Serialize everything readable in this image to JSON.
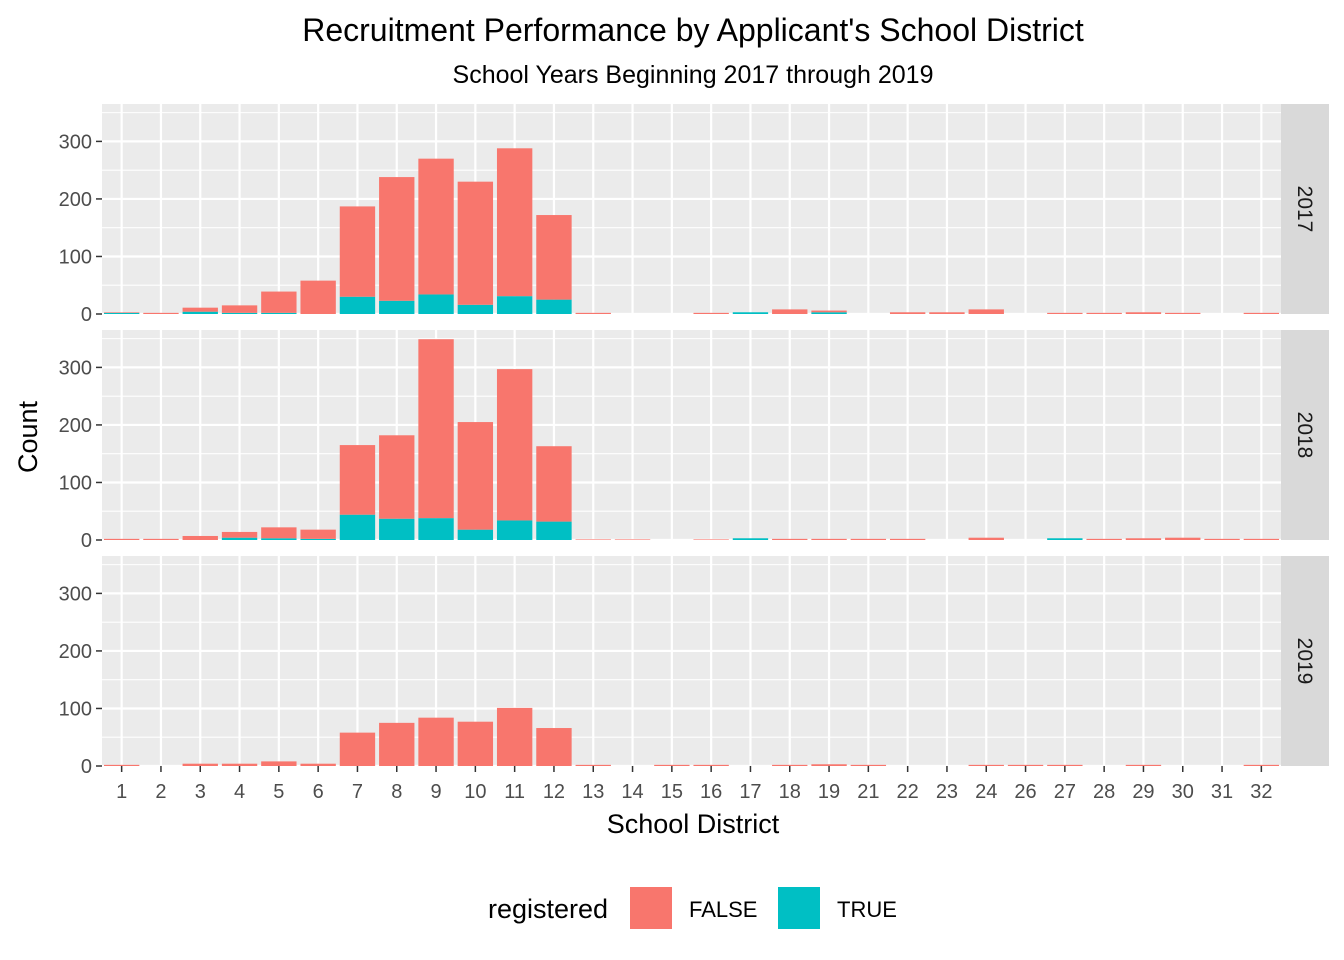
{
  "chart_data": {
    "type": "bar",
    "stacked": true,
    "faceted": true,
    "title": "Recruitment Performance by Applicant's School District",
    "subtitle": "School Years Beginning 2017 through 2019",
    "xlabel": "School District",
    "ylabel": "Count",
    "ylim": [
      0,
      365
    ],
    "yticks": [
      0,
      100,
      200,
      300
    ],
    "grid": true,
    "legend_position": "bottom",
    "legend": {
      "title": "registered",
      "items": [
        {
          "label": "FALSE",
          "color": "#F8766D"
        },
        {
          "label": "TRUE",
          "color": "#00BFC4"
        }
      ]
    },
    "categories": [
      "1",
      "2",
      "3",
      "4",
      "5",
      "6",
      "7",
      "8",
      "9",
      "10",
      "11",
      "12",
      "13",
      "14",
      "15",
      "16",
      "17",
      "18",
      "19",
      "21",
      "22",
      "23",
      "24",
      "26",
      "27",
      "28",
      "29",
      "30",
      "31",
      "32"
    ],
    "panels": [
      {
        "label": "2017",
        "series": [
          {
            "name": "FALSE",
            "values": [
              1,
              2,
              7,
              13,
              37,
              58,
              157,
              215,
              236,
              214,
              257,
              147,
              2,
              0,
              0,
              2,
              0,
              8,
              3,
              0,
              3,
              3,
              8,
              0,
              2,
              2,
              3,
              2,
              0,
              2
            ]
          },
          {
            "name": "TRUE",
            "values": [
              2,
              0,
              4,
              2,
              2,
              0,
              30,
              23,
              34,
              16,
              31,
              25,
              0,
              0,
              0,
              0,
              3,
              0,
              3,
              0,
              0,
              0,
              0,
              0,
              0,
              0,
              0,
              0,
              0,
              0
            ]
          }
        ]
      },
      {
        "label": "2018",
        "series": [
          {
            "name": "FALSE",
            "values": [
              2,
              2,
              7,
              10,
              19,
              16,
              121,
              145,
              311,
              187,
              263,
              131,
              1,
              1,
              0,
              1,
              0,
              2,
              2,
              2,
              2,
              0,
              4,
              0,
              0,
              2,
              3,
              4,
              2,
              2
            ]
          },
          {
            "name": "TRUE",
            "values": [
              0,
              0,
              0,
              4,
              3,
              2,
              44,
              37,
              38,
              18,
              34,
              32,
              0,
              0,
              0,
              0,
              3,
              0,
              0,
              0,
              0,
              0,
              0,
              0,
              3,
              0,
              0,
              0,
              0,
              0
            ]
          }
        ]
      },
      {
        "label": "2019",
        "series": [
          {
            "name": "FALSE",
            "values": [
              2,
              0,
              4,
              4,
              8,
              4,
              58,
              75,
              84,
              77,
              101,
              66,
              2,
              0,
              2,
              2,
              0,
              2,
              3,
              2,
              0,
              0,
              2,
              2,
              2,
              0,
              2,
              0,
              0,
              2
            ]
          },
          {
            "name": "TRUE",
            "values": [
              0,
              0,
              0,
              0,
              0,
              0,
              0,
              0,
              0,
              0,
              0,
              0,
              0,
              0,
              0,
              0,
              0,
              0,
              0,
              0,
              0,
              0,
              0,
              0,
              0,
              0,
              0,
              0,
              0,
              0
            ]
          }
        ]
      }
    ]
  }
}
